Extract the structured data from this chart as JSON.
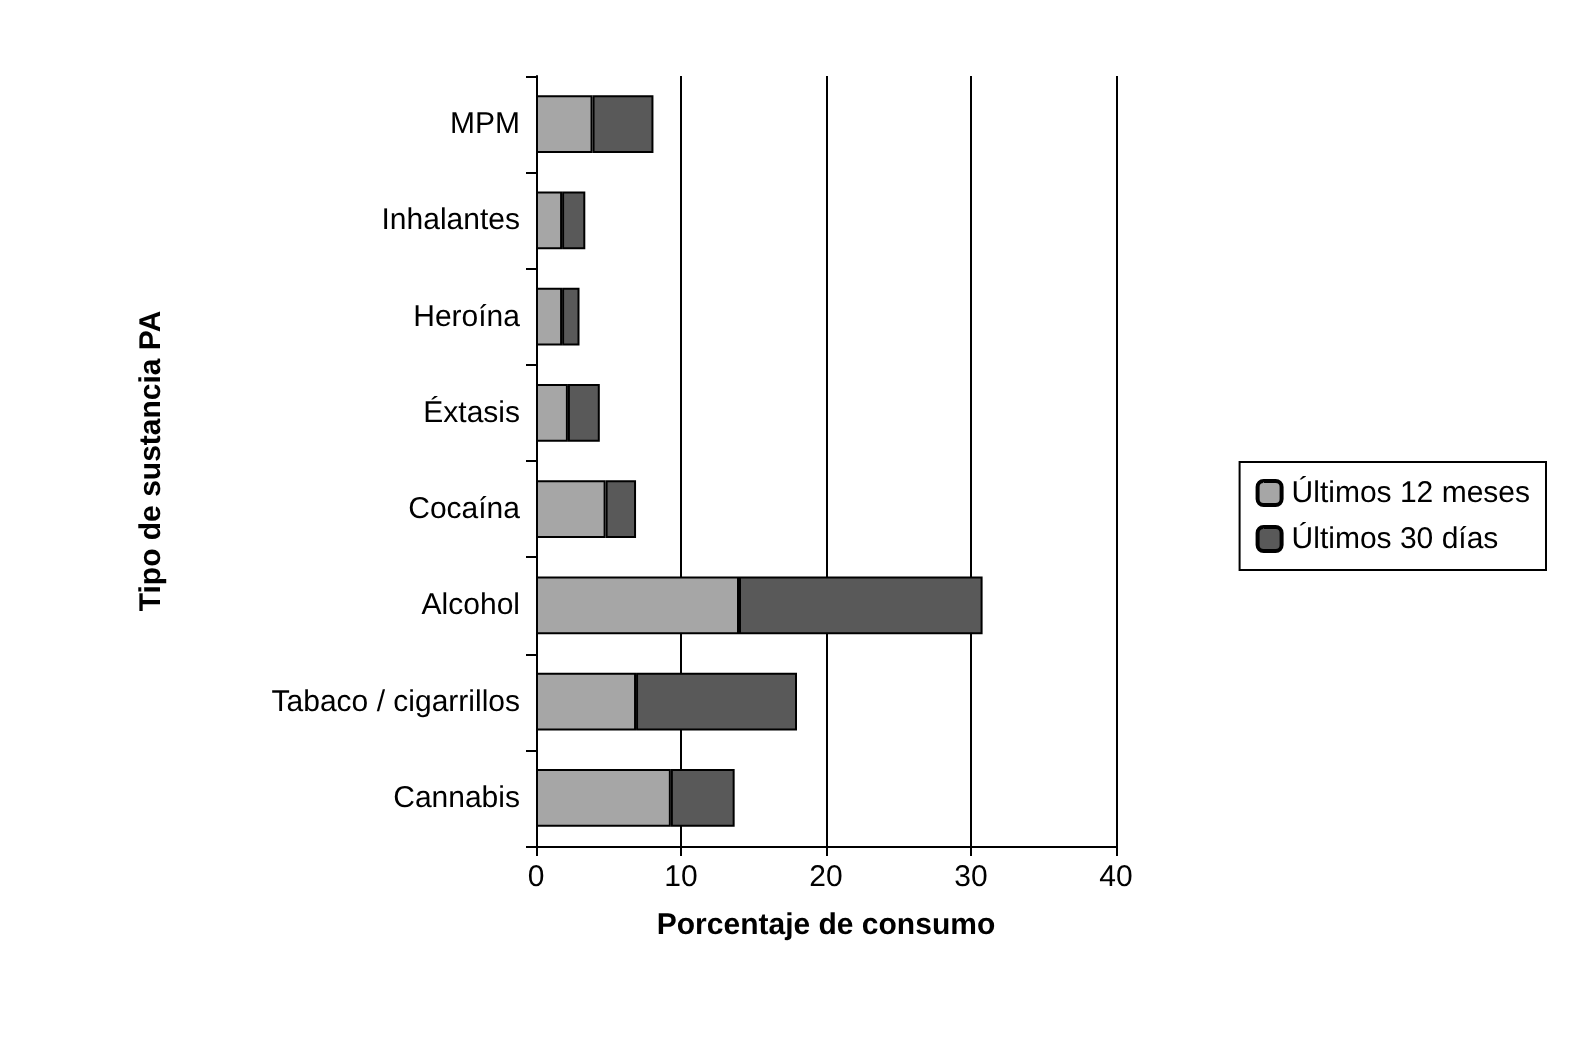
{
  "chart_data": {
    "type": "bar",
    "orientation": "horizontal",
    "stacked": true,
    "xlabel": "Porcentaje de consumo",
    "ylabel": "Tipo de sustancia PA",
    "categories": [
      "MPM",
      "Inhalantes",
      "Heroína",
      "Éxtasis",
      "Cocaína",
      "Alcohol",
      "Tabaco / cigarrillos",
      "Cannabis"
    ],
    "series": [
      {
        "name": "Últimos 12 meses",
        "color": "#a6a6a6",
        "values": [
          3.9,
          1.8,
          1.8,
          2.2,
          4.8,
          14.0,
          6.9,
          9.3
        ]
      },
      {
        "name": "Últimos 30 días",
        "color": "#595959",
        "values": [
          4.2,
          1.6,
          1.2,
          2.2,
          2.1,
          16.8,
          11.1,
          4.4
        ]
      }
    ],
    "xlim": [
      0,
      40
    ],
    "xticks": [
      0,
      10,
      20,
      30,
      40
    ],
    "grid": "x",
    "legend": "right"
  }
}
